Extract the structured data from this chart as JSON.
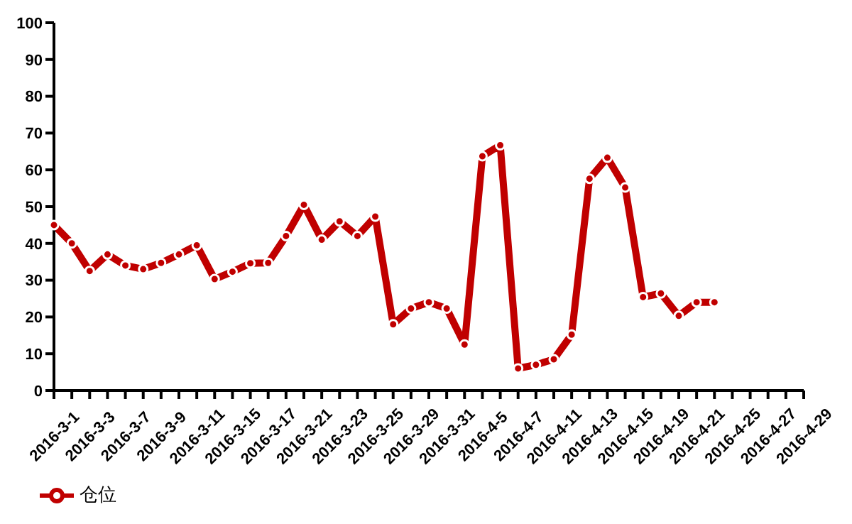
{
  "chart_data": {
    "type": "line",
    "categories": [
      "2016-3-1",
      null,
      "2016-3-3",
      null,
      "2016-3-7",
      null,
      "2016-3-9",
      null,
      "2016-3-11",
      null,
      "2016-3-15",
      null,
      "2016-3-17",
      null,
      "2016-3-21",
      null,
      "2016-3-23",
      null,
      "2016-3-25",
      null,
      "2016-3-29",
      null,
      "2016-3-31",
      null,
      "2016-4-5",
      null,
      "2016-4-7",
      null,
      "2016-4-11",
      null,
      "2016-4-13",
      null,
      "2016-4-15",
      null,
      "2016-4-19",
      null,
      "2016-4-21",
      null,
      "2016-4-25",
      null,
      "2016-4-27",
      null,
      "2016-4-29"
    ],
    "series": [
      {
        "name": "仓位",
        "color": "#c00000",
        "values": [
          45,
          40,
          32.5,
          37,
          34,
          33,
          34.7,
          37,
          39.5,
          30.3,
          32.3,
          34.6,
          34.7,
          42,
          50.5,
          41,
          46,
          42,
          47.3,
          18,
          22.3,
          24,
          22.3,
          12.5,
          63.7,
          66.7,
          6,
          7,
          8.5,
          15.2,
          57.6,
          63.3,
          55.2,
          25.4,
          26.4,
          20.3,
          24,
          24,
          null,
          null,
          null,
          null,
          null
        ]
      }
    ],
    "ylim": [
      0,
      100
    ],
    "yticks": [
      0,
      10,
      20,
      30,
      40,
      50,
      60,
      70,
      80,
      90,
      100
    ],
    "grid": false,
    "legend": "bottom left",
    "marker": "circle",
    "line_style": "solid"
  }
}
